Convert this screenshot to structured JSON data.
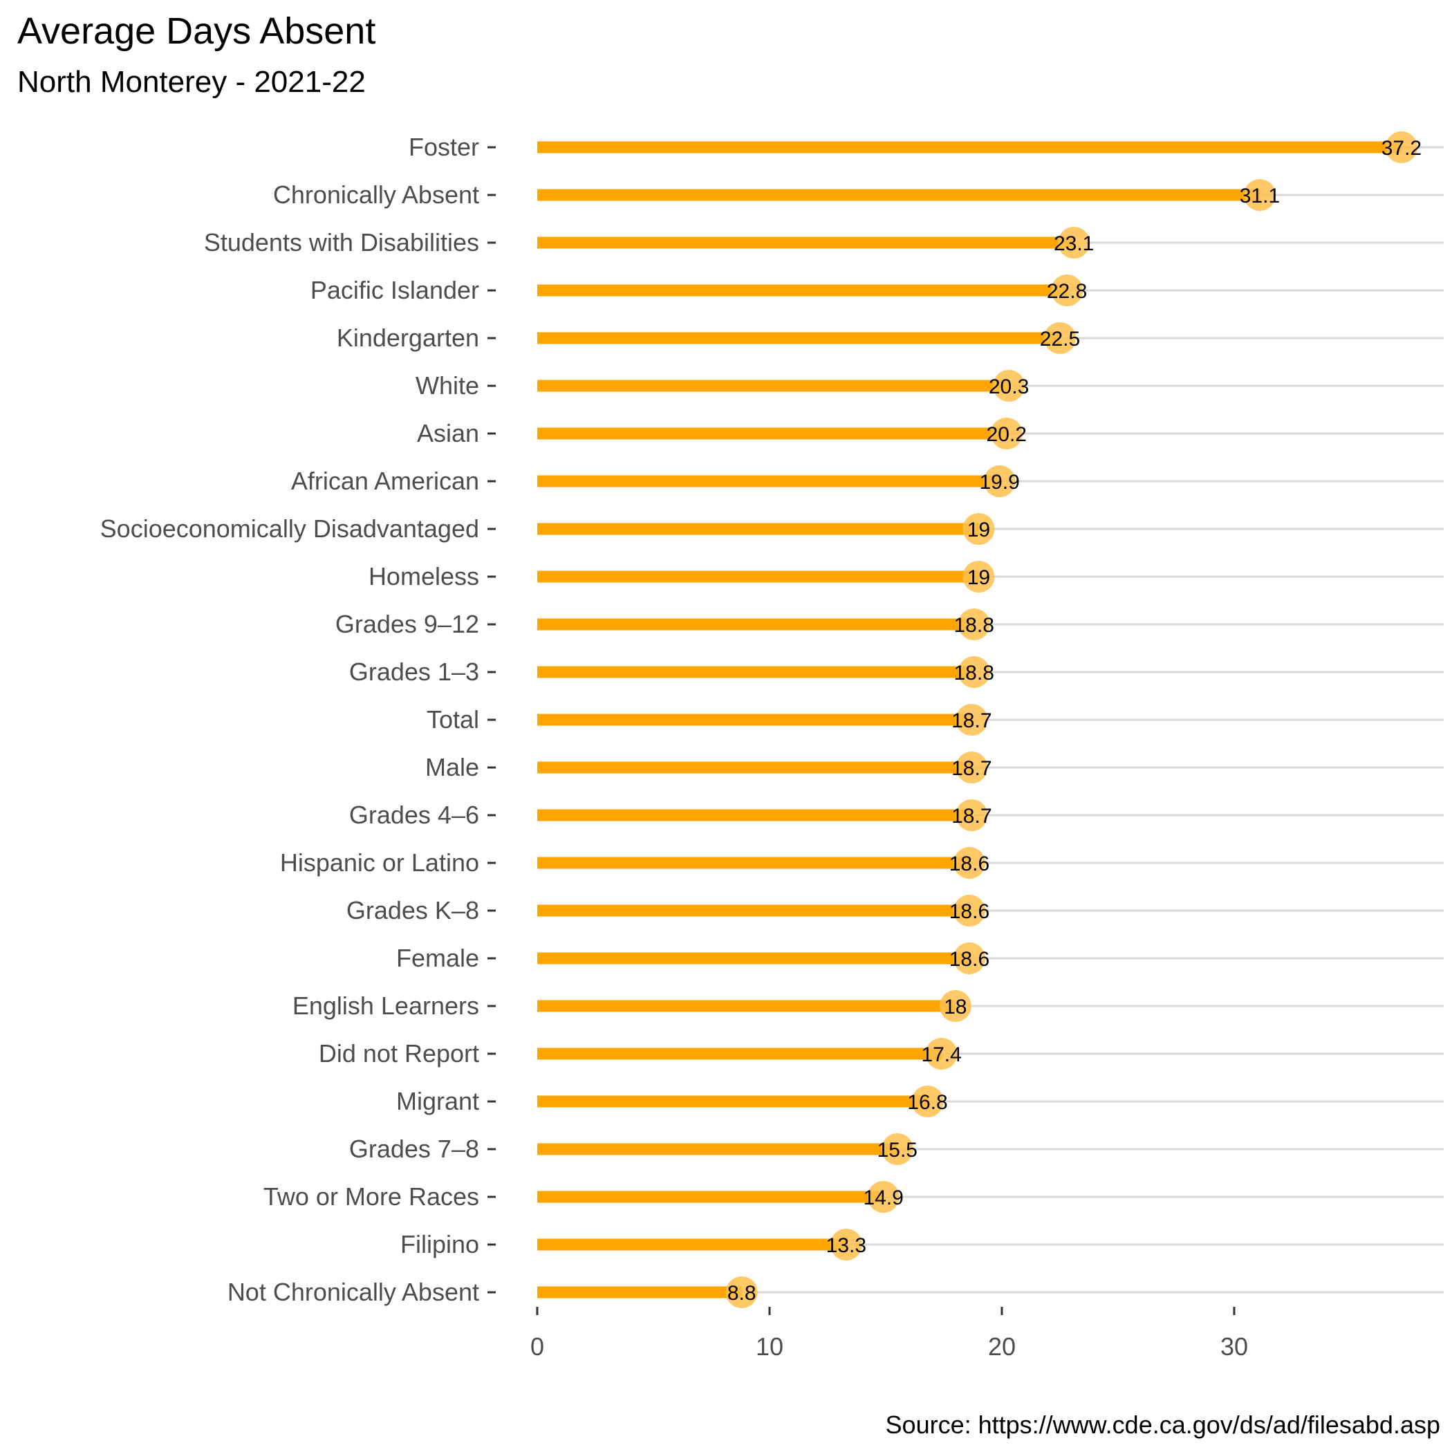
{
  "chart_data": {
    "type": "bar",
    "style": "lollipop",
    "orientation": "horizontal",
    "title": "Average Days Absent",
    "subtitle": "North Monterey - 2021-22",
    "caption": "Source: https://www.cde.ca.gov/ds/ad/filesabd.asp",
    "xlabel": "",
    "ylabel": "",
    "xlim": [
      0,
      37.2
    ],
    "xticks": [
      0,
      10,
      20,
      30
    ],
    "grid": "horizontal-only",
    "legend": "none",
    "colors": {
      "bar": "#FFA500",
      "point": "#FFC04D",
      "grid": "#D9D9D9",
      "label": "#4D4D4D"
    },
    "categories": [
      "Foster",
      "Chronically Absent",
      "Students with Disabilities",
      "Pacific Islander",
      "Kindergarten",
      "White",
      "Asian",
      "African American",
      "Socioeconomically Disadvantaged",
      "Homeless",
      "Grades 9–12",
      "Grades 1–3",
      "Total",
      "Male",
      "Grades 4–6",
      "Hispanic or Latino",
      "Grades K–8",
      "Female",
      "English Learners",
      "Did not Report",
      "Migrant",
      "Grades 7–8",
      "Two or More Races",
      "Filipino",
      "Not Chronically Absent"
    ],
    "values": [
      37.2,
      31.1,
      23.1,
      22.8,
      22.5,
      20.3,
      20.2,
      19.9,
      19,
      19,
      18.8,
      18.8,
      18.7,
      18.7,
      18.7,
      18.6,
      18.6,
      18.6,
      18,
      17.4,
      16.8,
      15.5,
      14.9,
      13.3,
      8.8
    ],
    "value_labels": [
      "37.2",
      "31.1",
      "23.1",
      "22.8",
      "22.5",
      "20.3",
      "20.2",
      "19.9",
      "19",
      "19",
      "18.8",
      "18.8",
      "18.7",
      "18.7",
      "18.7",
      "18.6",
      "18.6",
      "18.6",
      "18",
      "17.4",
      "16.8",
      "15.5",
      "14.9",
      "13.3",
      "8.8"
    ]
  }
}
